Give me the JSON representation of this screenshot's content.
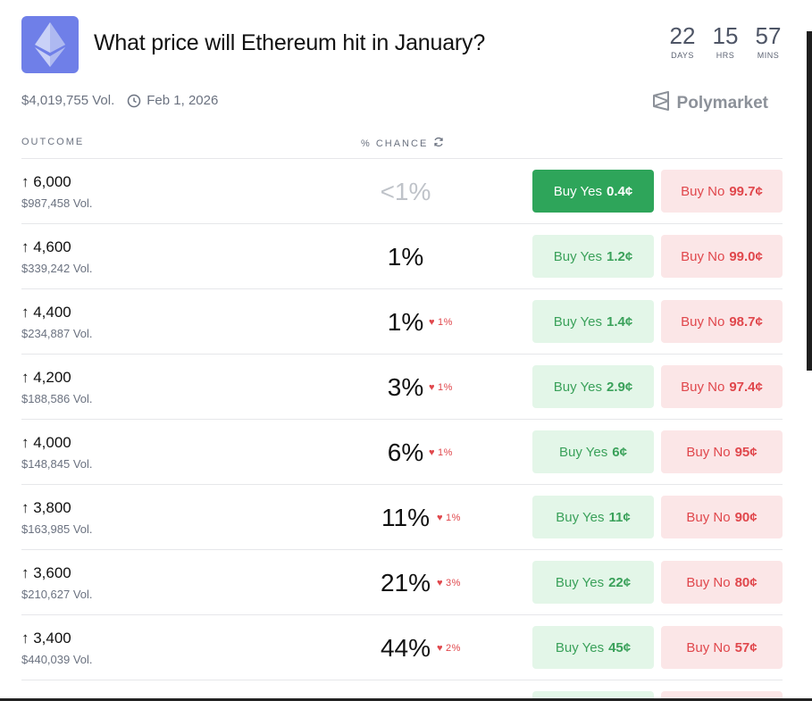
{
  "header": {
    "title": "What price will Ethereum hit in January?",
    "countdown": [
      {
        "value": "22",
        "unit": "DAYS"
      },
      {
        "value": "15",
        "unit": "HRS"
      },
      {
        "value": "57",
        "unit": "MINS"
      }
    ]
  },
  "meta": {
    "volume": "$4,019,755 Vol.",
    "end_date": "Feb 1, 2026"
  },
  "brand": {
    "name": "Polymarket"
  },
  "columns": {
    "outcome": "OUTCOME",
    "chance": "% CHANCE"
  },
  "colors": {
    "yes": "#2ea55a",
    "no": "#e0474c",
    "logo_bg": "#6f7fe8"
  },
  "rows": [
    {
      "label": "↑ 6,000",
      "volume": "$987,458 Vol.",
      "chance": "<1%",
      "delta": "",
      "yes_label": "Buy Yes",
      "yes_price": "0.4¢",
      "no_label": "Buy No",
      "no_price": "99.7¢"
    },
    {
      "label": "↑ 4,600",
      "volume": "$339,242 Vol.",
      "chance": "1%",
      "delta": "",
      "yes_label": "Buy Yes",
      "yes_price": "1.2¢",
      "no_label": "Buy No",
      "no_price": "99.0¢"
    },
    {
      "label": "↑ 4,400",
      "volume": "$234,887 Vol.",
      "chance": "1%",
      "delta": "1%",
      "yes_label": "Buy Yes",
      "yes_price": "1.4¢",
      "no_label": "Buy No",
      "no_price": "98.7¢"
    },
    {
      "label": "↑ 4,200",
      "volume": "$188,586 Vol.",
      "chance": "3%",
      "delta": "1%",
      "yes_label": "Buy Yes",
      "yes_price": "2.9¢",
      "no_label": "Buy No",
      "no_price": "97.4¢"
    },
    {
      "label": "↑ 4,000",
      "volume": "$148,845 Vol.",
      "chance": "6%",
      "delta": "1%",
      "yes_label": "Buy Yes",
      "yes_price": "6¢",
      "no_label": "Buy No",
      "no_price": "95¢"
    },
    {
      "label": "↑ 3,800",
      "volume": "$163,985 Vol.",
      "chance": "11%",
      "delta": "1%",
      "yes_label": "Buy Yes",
      "yes_price": "11¢",
      "no_label": "Buy No",
      "no_price": "90¢"
    },
    {
      "label": "↑ 3,600",
      "volume": "$210,627 Vol.",
      "chance": "21%",
      "delta": "3%",
      "yes_label": "Buy Yes",
      "yes_price": "22¢",
      "no_label": "Buy No",
      "no_price": "80¢"
    },
    {
      "label": "↑ 3,400",
      "volume": "$440,039 Vol.",
      "chance": "44%",
      "delta": "2%",
      "yes_label": "Buy Yes",
      "yes_price": "45¢",
      "no_label": "Buy No",
      "no_price": "57¢"
    }
  ]
}
